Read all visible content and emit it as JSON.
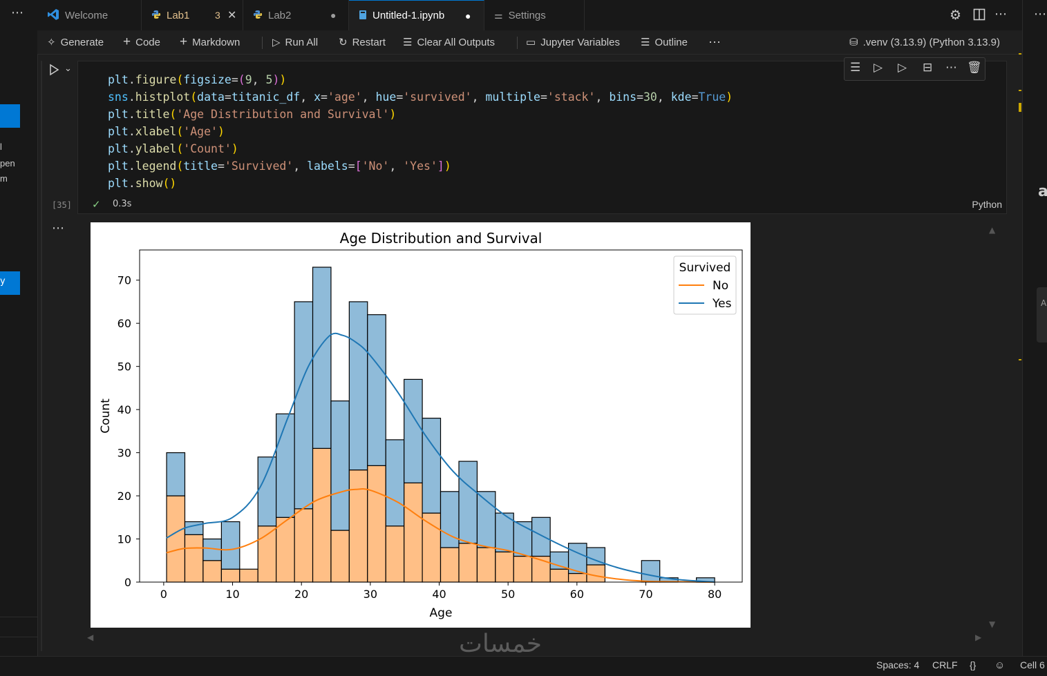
{
  "tabs": [
    {
      "label": "Welcome",
      "icon": "vscode-logo-icon"
    },
    {
      "label": "Lab1",
      "badge": "3",
      "icon": "python-icon"
    },
    {
      "label": "Lab2",
      "icon": "python-icon"
    },
    {
      "label": "Untitled-1.ipynb",
      "icon": "notebook-icon"
    },
    {
      "label": "Settings",
      "icon": "settings-sliders-icon"
    }
  ],
  "toolbar": {
    "generate": "Generate",
    "code": "Code",
    "markdown": "Markdown",
    "run_all": "Run All",
    "restart": "Restart",
    "clear_outputs": "Clear All Outputs",
    "variables": "Jupyter Variables",
    "outline": "Outline",
    "kernel": ".venv (3.13.9) (Python 3.13.9)"
  },
  "sidebar": {
    "lines": [
      "l",
      "pen",
      "m"
    ],
    "button_text": "y"
  },
  "cell": {
    "exec_count": "[35]",
    "time": "0.3s",
    "language": "Python"
  },
  "rightstrip": {
    "letter": "a",
    "sub": "A"
  },
  "status": {
    "spaces": "Spaces: 4",
    "eol": "CRLF",
    "braces": "{}",
    "cell": "Cell 6"
  },
  "watermark": "خمسات",
  "colors": {
    "no": "#ff7f0e",
    "yes": "#1f77b4",
    "no_fill": "#ffbf86",
    "yes_fill": "#8fbbd9"
  },
  "chart_data": {
    "type": "bar",
    "subtype": "stacked-histogram-with-kde",
    "title": "Age Distribution and Survival",
    "xlabel": "Age",
    "ylabel": "Count",
    "xlim": [
      -3.5,
      84
    ],
    "ylim": [
      0,
      77
    ],
    "xticks": [
      0,
      10,
      20,
      30,
      40,
      50,
      60,
      70,
      80
    ],
    "yticks": [
      0,
      10,
      20,
      30,
      40,
      50,
      60,
      70
    ],
    "bin_edges": [
      0.42,
      3.07,
      5.72,
      8.38,
      11.03,
      13.68,
      16.33,
      18.99,
      21.64,
      24.29,
      26.94,
      29.59,
      32.25,
      34.9,
      37.55,
      40.2,
      42.86,
      45.51,
      48.16,
      50.81,
      53.46,
      56.12,
      58.77,
      61.42,
      64.07,
      66.73,
      69.38,
      72.03,
      74.68,
      77.34,
      80.0
    ],
    "legend": {
      "title": "Survived",
      "location": "top-right",
      "entries": [
        "No",
        "Yes"
      ]
    },
    "series": [
      {
        "name": "No",
        "values": [
          20,
          11,
          5,
          3,
          3,
          13,
          15,
          17,
          31,
          12,
          26,
          27,
          13,
          23,
          16,
          8,
          9,
          8,
          7,
          6,
          6,
          3,
          2,
          4,
          0,
          0,
          0,
          0,
          0,
          0
        ]
      },
      {
        "name": "Yes",
        "values": [
          10,
          3,
          5,
          11,
          0,
          16,
          24,
          48,
          42,
          30,
          39,
          35,
          20,
          24,
          22,
          13,
          19,
          13,
          9,
          8,
          9,
          4,
          7,
          4,
          0,
          0,
          5,
          1,
          0,
          1
        ]
      }
    ],
    "kde": [
      {
        "name": "No",
        "points": [
          [
            0.4,
            6.8
          ],
          [
            3,
            7.8
          ],
          [
            6,
            7.9
          ],
          [
            10,
            7.6
          ],
          [
            14,
            10
          ],
          [
            18,
            14.5
          ],
          [
            22,
            18.8
          ],
          [
            26,
            21
          ],
          [
            28,
            21.5
          ],
          [
            30,
            21.3
          ],
          [
            34,
            18.5
          ],
          [
            38,
            14.2
          ],
          [
            42,
            10.5
          ],
          [
            46,
            8.5
          ],
          [
            50,
            7.3
          ],
          [
            54,
            5.5
          ],
          [
            58,
            3.5
          ],
          [
            62,
            1.7
          ],
          [
            66,
            0.7
          ],
          [
            70,
            0.2
          ],
          [
            74,
            0.1
          ],
          [
            80,
            0
          ]
        ]
      },
      {
        "name": "Yes",
        "points": [
          [
            0.4,
            10.2
          ],
          [
            3,
            12.5
          ],
          [
            6,
            13.6
          ],
          [
            10,
            15
          ],
          [
            14,
            22
          ],
          [
            18,
            38
          ],
          [
            21,
            50
          ],
          [
            24,
            57
          ],
          [
            26,
            57.2
          ],
          [
            28,
            55.5
          ],
          [
            30,
            52.5
          ],
          [
            34,
            44
          ],
          [
            38,
            34
          ],
          [
            42,
            25.7
          ],
          [
            46,
            20
          ],
          [
            50,
            15
          ],
          [
            54,
            11.5
          ],
          [
            58,
            8.3
          ],
          [
            62,
            5.5
          ],
          [
            66,
            3.3
          ],
          [
            70,
            1.8
          ],
          [
            74,
            0.7
          ],
          [
            78,
            0.2
          ],
          [
            80,
            0
          ]
        ]
      }
    ]
  }
}
